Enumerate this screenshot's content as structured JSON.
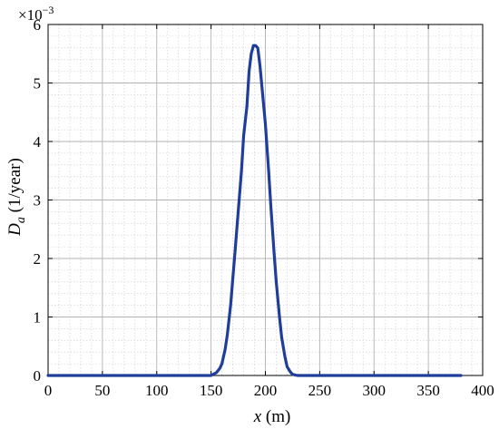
{
  "chart_data": {
    "type": "line",
    "title": "",
    "xlabel": {
      "var": "x",
      "unit": " (m)"
    },
    "ylabel": {
      "var": "D",
      "sub": "a",
      "unit": " (1/year)"
    },
    "exponent_label": {
      "base": "×10",
      "exp": "−3"
    },
    "xlim": [
      0,
      400
    ],
    "ylim": [
      0,
      6
    ],
    "xticks": [
      "0",
      "50",
      "100",
      "150",
      "200",
      "250",
      "300",
      "350",
      "400"
    ],
    "yticks": [
      "0",
      "1",
      "2",
      "3",
      "4",
      "5",
      "6"
    ],
    "grid": true,
    "minor_grid": true,
    "series_color": "#1f3d99",
    "series": [
      {
        "x": [
          0,
          50,
          100,
          150,
          152,
          155,
          158,
          160,
          163,
          165,
          168,
          170,
          172,
          175,
          178,
          180,
          183,
          185,
          187,
          189,
          191,
          193,
          195,
          197,
          200,
          203,
          205,
          208,
          210,
          213,
          215,
          218,
          220,
          223,
          225,
          228,
          230,
          250,
          300,
          350,
          380
        ],
        "y": [
          0,
          0,
          0,
          0,
          0.02,
          0.05,
          0.12,
          0.2,
          0.45,
          0.7,
          1.2,
          1.65,
          2.1,
          2.8,
          3.5,
          4.1,
          4.6,
          5.2,
          5.5,
          5.64,
          5.64,
          5.6,
          5.3,
          4.9,
          4.3,
          3.5,
          2.9,
          2.1,
          1.6,
          1.0,
          0.65,
          0.32,
          0.15,
          0.06,
          0.02,
          0.005,
          0,
          0,
          0,
          0,
          0
        ]
      }
    ]
  }
}
